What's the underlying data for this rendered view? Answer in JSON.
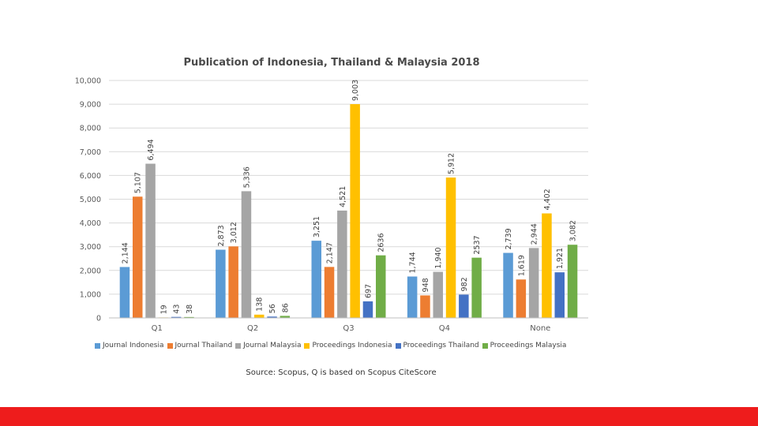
{
  "chart_data": {
    "type": "bar",
    "title": "Publication of Indonesia, Thailand & Malaysia 2018",
    "categories": [
      "Q1",
      "Q2",
      "Q3",
      "Q4",
      "None"
    ],
    "ylim": [
      0,
      10000
    ],
    "yticks": [
      0,
      1000,
      2000,
      3000,
      4000,
      5000,
      6000,
      7000,
      8000,
      9000,
      10000
    ],
    "ytick_labels": [
      "0",
      "1,000",
      "2,000",
      "3,000",
      "4,000",
      "5,000",
      "6,000",
      "7,000",
      "8,000",
      "9,000",
      "10,000"
    ],
    "grid": true,
    "legend_position": "bottom",
    "series": [
      {
        "name": "Journal Indonesia",
        "color": "#5B9BD5",
        "values": [
          2144,
          2873,
          3251,
          1744,
          2739
        ],
        "labels": [
          "2,144",
          "2,873",
          "3,251",
          "1,744",
          "2,739"
        ]
      },
      {
        "name": "Journal Thailand",
        "color": "#ED7D31",
        "values": [
          5107,
          3012,
          2147,
          948,
          1619
        ],
        "labels": [
          "5,107",
          "3,012",
          "2,147",
          "948",
          "1,619"
        ]
      },
      {
        "name": "Journal Malaysia",
        "color": "#A5A5A5",
        "values": [
          6494,
          5336,
          4521,
          1940,
          2944
        ],
        "labels": [
          "6,494",
          "5,336",
          "4,521",
          "1,940",
          "2,944"
        ]
      },
      {
        "name": "Proceedings Indonesia",
        "color": "#FFC000",
        "values": [
          19,
          138,
          9003,
          5912,
          4402
        ],
        "labels": [
          "19",
          "138",
          "9,003",
          "5,912",
          "4,402"
        ]
      },
      {
        "name": "Proceedings Thailand",
        "color": "#4472C4",
        "values": [
          43,
          56,
          697,
          982,
          1921
        ],
        "labels": [
          "43",
          "56",
          "697",
          "982",
          "1,921"
        ]
      },
      {
        "name": "Proceedings Malaysia",
        "color": "#70AD47",
        "values": [
          38,
          86,
          2636,
          2537,
          3082
        ],
        "labels": [
          "38",
          "86",
          "2636",
          "2537",
          "3,082"
        ]
      }
    ]
  },
  "source_note": "Source: Scopus, Q is based on Scopus CiteScore",
  "colors": {
    "footer_bar": "#EE1C1C",
    "gridline": "#D9D9D9",
    "axis_text": "#595959"
  }
}
